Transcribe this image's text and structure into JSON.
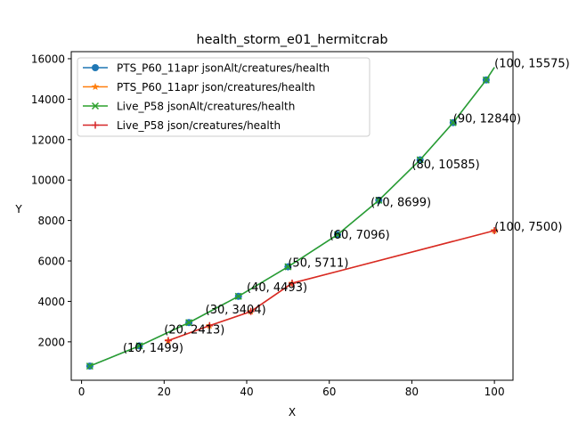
{
  "chart_data": {
    "type": "line",
    "title": "health_storm_e01_hermitcrab",
    "xlabel": "X",
    "ylabel": "Y",
    "xlim": [
      -2.5,
      104.5
    ],
    "ylim": [
      100,
      16350
    ],
    "xticks": [
      0,
      20,
      40,
      60,
      80,
      100
    ],
    "yticks": [
      2000,
      4000,
      6000,
      8000,
      10000,
      12000,
      14000,
      16000
    ],
    "grid": false,
    "legend_position": "upper-left",
    "series": [
      {
        "name": "PTS_P60_11apr jsonAlt/creatures/health",
        "color": "#1f77b4",
        "marker": "circle",
        "points": [
          [
            2,
            800
          ],
          [
            14,
            1800
          ],
          [
            26,
            2950
          ],
          [
            38,
            4250
          ],
          [
            50,
            5711
          ],
          [
            62,
            7300
          ],
          [
            72,
            9000
          ],
          [
            82,
            11000
          ],
          [
            90,
            12840
          ],
          [
            98,
            14950
          ],
          [
            100,
            15575
          ]
        ]
      },
      {
        "name": "PTS_P60_11apr json/creatures/health",
        "color": "#ff7f0e",
        "marker": "star",
        "points": [
          [
            21,
            2060
          ],
          [
            31,
            2800
          ],
          [
            41,
            3500
          ],
          [
            51,
            4900
          ],
          [
            100,
            7500
          ]
        ]
      },
      {
        "name": "Live_P58 jsonAlt/creatures/health",
        "color": "#2ca02c",
        "marker": "x",
        "points": [
          [
            2,
            800
          ],
          [
            14,
            1800
          ],
          [
            26,
            2950
          ],
          [
            38,
            4250
          ],
          [
            50,
            5711
          ],
          [
            62,
            7300
          ],
          [
            72,
            9000
          ],
          [
            82,
            11000
          ],
          [
            90,
            12840
          ],
          [
            98,
            14950
          ],
          [
            100,
            15575
          ]
        ]
      },
      {
        "name": "Live_P58 json/creatures/health",
        "color": "#d62728",
        "marker": "plus",
        "points": [
          [
            21,
            2060
          ],
          [
            31,
            2800
          ],
          [
            41,
            3500
          ],
          [
            51,
            4900
          ],
          [
            100,
            7500
          ]
        ]
      }
    ],
    "annotations": [
      {
        "x": 10,
        "y": 1499,
        "text": "(10, 1499)"
      },
      {
        "x": 20,
        "y": 2413,
        "text": "(20, 2413)"
      },
      {
        "x": 30,
        "y": 3404,
        "text": "(30, 3404)"
      },
      {
        "x": 40,
        "y": 4493,
        "text": "(40, 4493)"
      },
      {
        "x": 50,
        "y": 5711,
        "text": "(50, 5711)"
      },
      {
        "x": 60,
        "y": 7096,
        "text": "(60, 7096)"
      },
      {
        "x": 70,
        "y": 8699,
        "text": "(70, 8699)"
      },
      {
        "x": 80,
        "y": 10585,
        "text": "(80, 10585)"
      },
      {
        "x": 90,
        "y": 12840,
        "text": "(90, 12840)"
      },
      {
        "x": 100,
        "y": 15575,
        "text": "(100, 15575)"
      },
      {
        "x": 100,
        "y": 7500,
        "text": "(100, 7500)"
      }
    ]
  }
}
